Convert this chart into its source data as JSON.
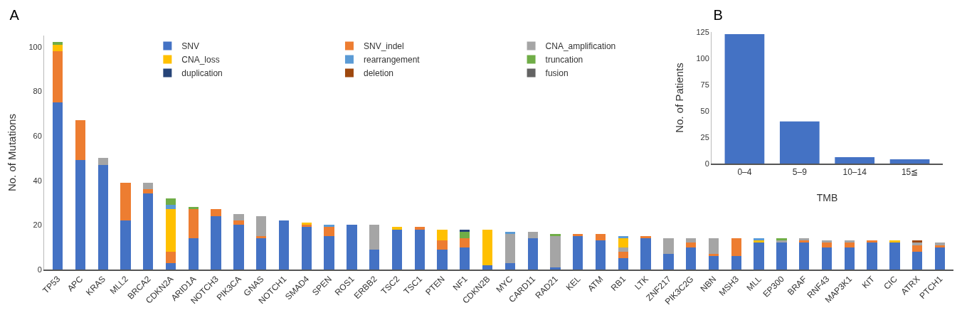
{
  "chart_data": [
    {
      "type": "bar",
      "title": "A",
      "ylabel": "No. of Mutations",
      "stacked": true,
      "legend": "top",
      "grid": false,
      "categories": [
        "TP53",
        "APC",
        "KRAS",
        "MLL2",
        "BRCA2",
        "CDKN2A",
        "ARID1A",
        "NOTCH3",
        "PIK3CA",
        "GNAS",
        "NOTCH1",
        "SMAD4",
        "SPEN",
        "ROS1",
        "ERBB2",
        "TSC2",
        "TSC1",
        "PTEN",
        "NF1",
        "CDKN2B",
        "MYC",
        "CARD11",
        "RAD21",
        "KEL",
        "ATM",
        "RB1",
        "LTK",
        "ZNF217",
        "PIK3C2G",
        "NBN",
        "MSH3",
        "MLL",
        "EP300",
        "BRAF",
        "RNF43",
        "MAP3K1",
        "KIT",
        "CIC",
        "ATRX",
        "PTCH1"
      ],
      "ylim": [
        0,
        105
      ],
      "yticks": [
        0,
        20,
        40,
        60,
        80,
        100
      ],
      "series": [
        {
          "name": "SNV",
          "color": "#4472c4",
          "values": [
            75,
            49,
            47,
            22,
            34,
            3,
            14,
            24,
            20,
            14,
            22,
            19,
            15,
            20,
            9,
            18,
            18,
            9,
            10,
            2,
            3,
            14,
            1,
            15,
            13,
            5,
            14,
            7,
            10,
            6,
            6,
            12,
            12,
            12,
            10,
            10,
            12,
            12,
            8,
            10
          ]
        },
        {
          "name": "SNV_indel",
          "color": "#ed7d31",
          "values": [
            23,
            18,
            0,
            17,
            2,
            5,
            13,
            3,
            2,
            1,
            0,
            1,
            4,
            0,
            0,
            0,
            1,
            4,
            4,
            0,
            0,
            0,
            0,
            1,
            3,
            3,
            1,
            0,
            2,
            1,
            8,
            0,
            0,
            1,
            2,
            2,
            1,
            0,
            3,
            1
          ]
        },
        {
          "name": "CNA_amplification",
          "color": "#a5a5a5",
          "values": [
            0,
            0,
            3,
            0,
            3,
            0,
            0,
            0,
            3,
            9,
            0,
            0,
            0,
            0,
            11,
            0,
            0,
            0,
            0,
            0,
            13,
            3,
            14,
            0,
            0,
            2,
            0,
            7,
            2,
            7,
            0,
            0,
            1,
            1,
            1,
            1,
            0,
            0,
            1,
            1
          ]
        },
        {
          "name": "CNA_loss",
          "color": "#ffc000",
          "values": [
            3,
            0,
            0,
            0,
            0,
            19,
            0,
            0,
            0,
            0,
            0,
            1,
            0,
            0,
            0,
            1,
            0,
            5,
            0,
            16,
            0,
            0,
            0,
            0,
            0,
            4,
            0,
            0,
            0,
            0,
            0,
            1,
            0,
            0,
            0,
            0,
            0,
            1,
            0,
            0
          ]
        },
        {
          "name": "rearrangement",
          "color": "#5b9bd5",
          "values": [
            0,
            0,
            0,
            0,
            0,
            2,
            0,
            0,
            0,
            0,
            0,
            0,
            1,
            0,
            0,
            0,
            0,
            0,
            0,
            0,
            1,
            0,
            0,
            0,
            0,
            1,
            0,
            0,
            0,
            0,
            0,
            1,
            0,
            0,
            0,
            0,
            0,
            0,
            0,
            0
          ]
        },
        {
          "name": "truncation",
          "color": "#70ad47",
          "values": [
            1,
            0,
            0,
            0,
            0,
            3,
            1,
            0,
            0,
            0,
            0,
            0,
            0,
            0,
            0,
            0,
            0,
            0,
            3,
            0,
            0,
            0,
            1,
            0,
            0,
            0,
            0,
            0,
            0,
            0,
            0,
            0,
            1,
            0,
            0,
            0,
            0,
            0,
            0,
            0
          ]
        },
        {
          "name": "duplication",
          "color": "#264478",
          "values": [
            0,
            0,
            0,
            0,
            0,
            0,
            0,
            0,
            0,
            0,
            0,
            0,
            0,
            0,
            0,
            0,
            0,
            0,
            1,
            0,
            0,
            0,
            0,
            0,
            0,
            0,
            0,
            0,
            0,
            0,
            0,
            0,
            0,
            0,
            0,
            0,
            0,
            0,
            0,
            0
          ]
        },
        {
          "name": "deletion",
          "color": "#9e480e",
          "values": [
            0,
            0,
            0,
            0,
            0,
            0,
            0,
            0,
            0,
            0,
            0,
            0,
            0,
            0,
            0,
            0,
            0,
            0,
            0,
            0,
            0,
            0,
            0,
            0,
            0,
            0,
            0,
            0,
            0,
            0,
            0,
            0,
            0,
            0,
            0,
            0,
            0,
            0,
            1,
            0
          ]
        },
        {
          "name": "fusion",
          "color": "#636363",
          "values": [
            0,
            0,
            0,
            0,
            0,
            0,
            0,
            0,
            0,
            0,
            0,
            0,
            0,
            0,
            0,
            0,
            0,
            0,
            0,
            0,
            0,
            0,
            0,
            0,
            0,
            0,
            0,
            0,
            0,
            0,
            0,
            0,
            0,
            0,
            0,
            0,
            0,
            0,
            0,
            0
          ]
        }
      ]
    },
    {
      "type": "bar",
      "title": "B",
      "xlabel": "TMB",
      "ylabel": "No. of Patients",
      "grid": false,
      "categories": [
        "0–4",
        "5–9",
        "10–14",
        "15≦"
      ],
      "values": [
        123,
        40,
        6,
        4
      ],
      "color": "#4472c4",
      "ylim": [
        0,
        125
      ],
      "yticks": [
        0,
        25,
        50,
        75,
        100,
        125
      ]
    }
  ]
}
